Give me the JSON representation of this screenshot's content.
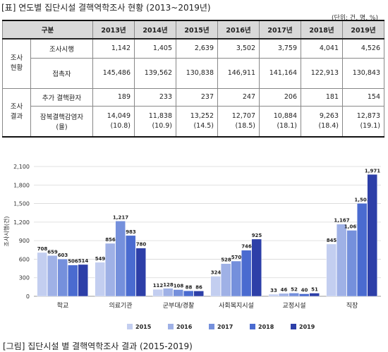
{
  "table": {
    "title": "[표] 연도별 집단시설 결핵역학조사 현황 (2013~2019년)",
    "unit": "(단위: 건, 명, %)",
    "header": {
      "category": "구분",
      "years": [
        "2013년",
        "2014년",
        "2015년",
        "2016년",
        "2017년",
        "2018년",
        "2019년"
      ]
    },
    "groups": [
      {
        "name": "조사\n현황",
        "rows": [
          {
            "label": "조사시행",
            "values": [
              "1,142",
              "1,405",
              "2,639",
              "3,502",
              "3,759",
              "4,041",
              "4,526"
            ]
          },
          {
            "label": "접촉자",
            "values": [
              "145,486",
              "139,562",
              "130,838",
              "146,911",
              "141,164",
              "122,913",
              "130,843"
            ]
          }
        ]
      },
      {
        "name": "조사\n결과",
        "rows": [
          {
            "label": "추가 결핵환자",
            "values": [
              "189",
              "233",
              "237",
              "247",
              "206",
              "181",
              "154"
            ]
          },
          {
            "label": "잠복결핵감염자\n(율)",
            "values": [
              "14,049\n(10.8)",
              "11,838\n(10.9)",
              "13,252\n(14.5)",
              "12,707\n(18.5)",
              "10,884\n(18.1)",
              "9,263\n(18.4)",
              "12,873\n(19.1)"
            ]
          }
        ]
      }
    ]
  },
  "figure": {
    "caption": "[그림] 집단시설 별 결핵역학조사 결과 (2015-2019)"
  },
  "chart_data": {
    "type": "bar",
    "ylabel": "조사시행(건)",
    "ylim": [
      0,
      2100
    ],
    "yticks": [
      0,
      300,
      600,
      900,
      1200,
      1500,
      1800,
      2100
    ],
    "categories": [
      "학교",
      "의료기관",
      "군부대/경찰",
      "사회복지시설",
      "교정시설",
      "직장"
    ],
    "series": [
      {
        "name": "2015",
        "color": "#c3cef0",
        "values": [
          708,
          549,
          112,
          324,
          33,
          845
        ]
      },
      {
        "name": "2016",
        "color": "#9fb1e6",
        "values": [
          659,
          856,
          128,
          528,
          46,
          1167
        ]
      },
      {
        "name": "2017",
        "color": "#7590dc",
        "values": [
          603,
          1217,
          108,
          570,
          52,
          1067
        ]
      },
      {
        "name": "2018",
        "color": "#4a6bd0",
        "values": [
          506,
          983,
          88,
          746,
          40,
          1503
        ]
      },
      {
        "name": "2019",
        "color": "#2d3fa8",
        "values": [
          514,
          780,
          86,
          925,
          51,
          1971
        ]
      }
    ],
    "legend_position": "bottom",
    "grid": true
  }
}
